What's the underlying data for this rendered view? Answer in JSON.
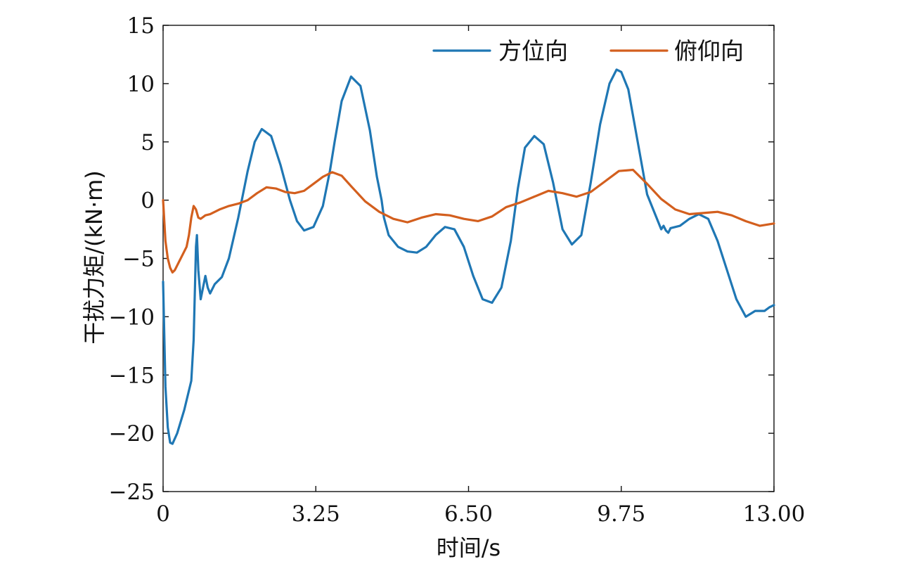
{
  "chart_data": {
    "type": "line",
    "title": "",
    "xlabel": "时间/s",
    "ylabel": "干扰力矩/(kN·m)",
    "xlim": [
      0,
      13.0
    ],
    "ylim": [
      -25,
      15
    ],
    "xticks": [
      0,
      3.25,
      6.5,
      9.75,
      13.0
    ],
    "xtick_labels": [
      "0",
      "3.25",
      "6.50",
      "9.75",
      "13.00"
    ],
    "yticks": [
      15,
      10,
      5,
      0,
      -5,
      -10,
      -15,
      -20,
      -25
    ],
    "ytick_labels": [
      "15",
      "10",
      "5",
      "0",
      "−5",
      "−10",
      "−15",
      "−20",
      "−25"
    ],
    "grid": false,
    "legend_position": "top-right",
    "series": [
      {
        "name": "方位向",
        "color": "#1f77b4",
        "x": [
          0.0,
          0.05,
          0.1,
          0.15,
          0.2,
          0.3,
          0.45,
          0.6,
          0.65,
          0.7,
          0.72,
          0.75,
          0.8,
          0.85,
          0.9,
          0.95,
          1.0,
          1.1,
          1.25,
          1.4,
          1.6,
          1.8,
          1.95,
          2.1,
          2.3,
          2.5,
          2.7,
          2.85,
          3.0,
          3.2,
          3.4,
          3.55,
          3.65,
          3.8,
          4.0,
          4.2,
          4.4,
          4.55,
          4.65,
          4.7,
          4.8,
          5.0,
          5.2,
          5.4,
          5.6,
          5.8,
          6.0,
          6.2,
          6.4,
          6.6,
          6.8,
          7.0,
          7.2,
          7.4,
          7.55,
          7.7,
          7.9,
          8.1,
          8.3,
          8.5,
          8.7,
          8.9,
          9.1,
          9.3,
          9.5,
          9.65,
          9.75,
          9.9,
          10.1,
          10.3,
          10.5,
          10.6,
          10.65,
          10.7,
          10.75,
          10.8,
          11.0,
          11.2,
          11.4,
          11.6,
          11.8,
          12.0,
          12.2,
          12.4,
          12.6,
          12.8,
          12.9,
          13.0
        ],
        "y": [
          -7.0,
          -16.0,
          -19.5,
          -20.8,
          -20.9,
          -20.0,
          -18.0,
          -15.5,
          -12.0,
          -4.0,
          -3.0,
          -6.0,
          -8.5,
          -7.5,
          -6.5,
          -7.5,
          -8.0,
          -7.2,
          -6.6,
          -5.0,
          -1.5,
          2.5,
          5.0,
          6.1,
          5.5,
          3.0,
          0.0,
          -1.8,
          -2.6,
          -2.3,
          -0.5,
          2.5,
          5.0,
          8.5,
          10.6,
          9.8,
          6.0,
          2.0,
          0.0,
          -1.5,
          -3.0,
          -4.0,
          -4.4,
          -4.5,
          -4.0,
          -3.0,
          -2.3,
          -2.5,
          -4.0,
          -6.5,
          -8.5,
          -8.8,
          -7.5,
          -3.5,
          1.0,
          4.5,
          5.5,
          4.8,
          1.5,
          -2.5,
          -3.8,
          -3.0,
          1.5,
          6.5,
          10.0,
          11.2,
          11.0,
          9.5,
          5.0,
          0.5,
          -1.5,
          -2.5,
          -2.2,
          -2.6,
          -2.8,
          -2.4,
          -2.2,
          -1.6,
          -1.2,
          -1.6,
          -3.5,
          -6.0,
          -8.5,
          -10.0,
          -9.5,
          -9.5,
          -9.2,
          -9.0
        ]
      },
      {
        "name": "俯仰向",
        "color": "#d35f1e",
        "x": [
          0.0,
          0.05,
          0.1,
          0.15,
          0.2,
          0.25,
          0.3,
          0.4,
          0.5,
          0.55,
          0.6,
          0.65,
          0.7,
          0.75,
          0.8,
          0.9,
          1.0,
          1.2,
          1.4,
          1.6,
          1.8,
          2.0,
          2.2,
          2.4,
          2.6,
          2.8,
          3.0,
          3.2,
          3.4,
          3.6,
          3.8,
          4.0,
          4.3,
          4.6,
          4.9,
          5.2,
          5.5,
          5.8,
          6.1,
          6.4,
          6.7,
          7.0,
          7.3,
          7.6,
          7.9,
          8.2,
          8.5,
          8.8,
          9.1,
          9.4,
          9.7,
          10.0,
          10.3,
          10.6,
          10.9,
          11.2,
          11.5,
          11.8,
          12.1,
          12.4,
          12.7,
          13.0
        ],
        "y": [
          0.0,
          -3.5,
          -5.0,
          -5.8,
          -6.2,
          -6.0,
          -5.6,
          -4.8,
          -4.0,
          -3.0,
          -1.5,
          -0.5,
          -0.8,
          -1.5,
          -1.6,
          -1.3,
          -1.2,
          -0.8,
          -0.5,
          -0.3,
          0.0,
          0.6,
          1.1,
          1.0,
          0.7,
          0.6,
          0.8,
          1.4,
          2.0,
          2.4,
          2.1,
          1.2,
          -0.1,
          -1.0,
          -1.6,
          -1.9,
          -1.5,
          -1.2,
          -1.3,
          -1.6,
          -1.8,
          -1.4,
          -0.6,
          -0.2,
          0.3,
          0.8,
          0.6,
          0.3,
          0.7,
          1.6,
          2.5,
          2.6,
          1.4,
          0.1,
          -0.8,
          -1.2,
          -1.1,
          -1.0,
          -1.3,
          -1.8,
          -2.2,
          -2.0
        ]
      }
    ]
  }
}
